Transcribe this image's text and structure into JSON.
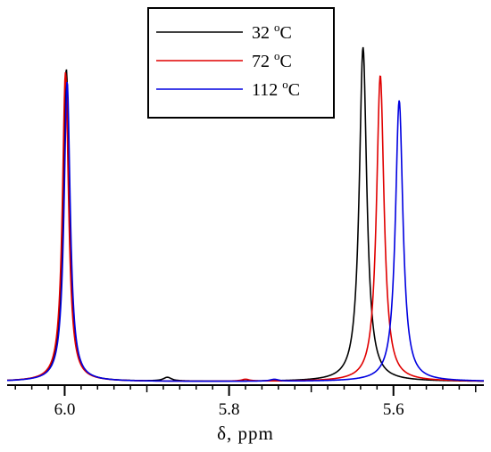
{
  "chart_data": {
    "type": "line",
    "title": "",
    "xlabel": "δ, ppm",
    "ylabel": "",
    "xlim": [
      6.07,
      5.49
    ],
    "x_reversed": true,
    "ylim": [
      0,
      1.05
    ],
    "x_ticks": [
      6.0,
      5.8,
      5.6
    ],
    "x_tick_labels": [
      "6.0",
      "5.8",
      "5.6"
    ],
    "legend_position": "top-center",
    "grid": false,
    "series": [
      {
        "name": "32 °C",
        "name_parts": {
          "value": "32",
          "deg": "o",
          "unit": "C"
        },
        "color": "#000000",
        "peaks": [
          {
            "center": 5.998,
            "height": 1.0,
            "width": 0.0045
          },
          {
            "center": 5.637,
            "height": 1.07,
            "width": 0.0055
          },
          {
            "center": 5.875,
            "height": 0.012,
            "width": 0.006
          }
        ]
      },
      {
        "name": "72 °C",
        "name_parts": {
          "value": "72",
          "deg": "o",
          "unit": "C"
        },
        "color": "#e00000",
        "peaks": [
          {
            "center": 5.999,
            "height": 0.99,
            "width": 0.0045
          },
          {
            "center": 5.616,
            "height": 0.98,
            "width": 0.0055
          },
          {
            "center": 5.78,
            "height": 0.006,
            "width": 0.006
          }
        ]
      },
      {
        "name": "112 °C",
        "name_parts": {
          "value": "112",
          "deg": "o",
          "unit": "C"
        },
        "color": "#0000e0",
        "peaks": [
          {
            "center": 5.997,
            "height": 0.96,
            "width": 0.0045
          },
          {
            "center": 5.593,
            "height": 0.9,
            "width": 0.0055
          },
          {
            "center": 5.745,
            "height": 0.006,
            "width": 0.006
          }
        ]
      }
    ]
  }
}
